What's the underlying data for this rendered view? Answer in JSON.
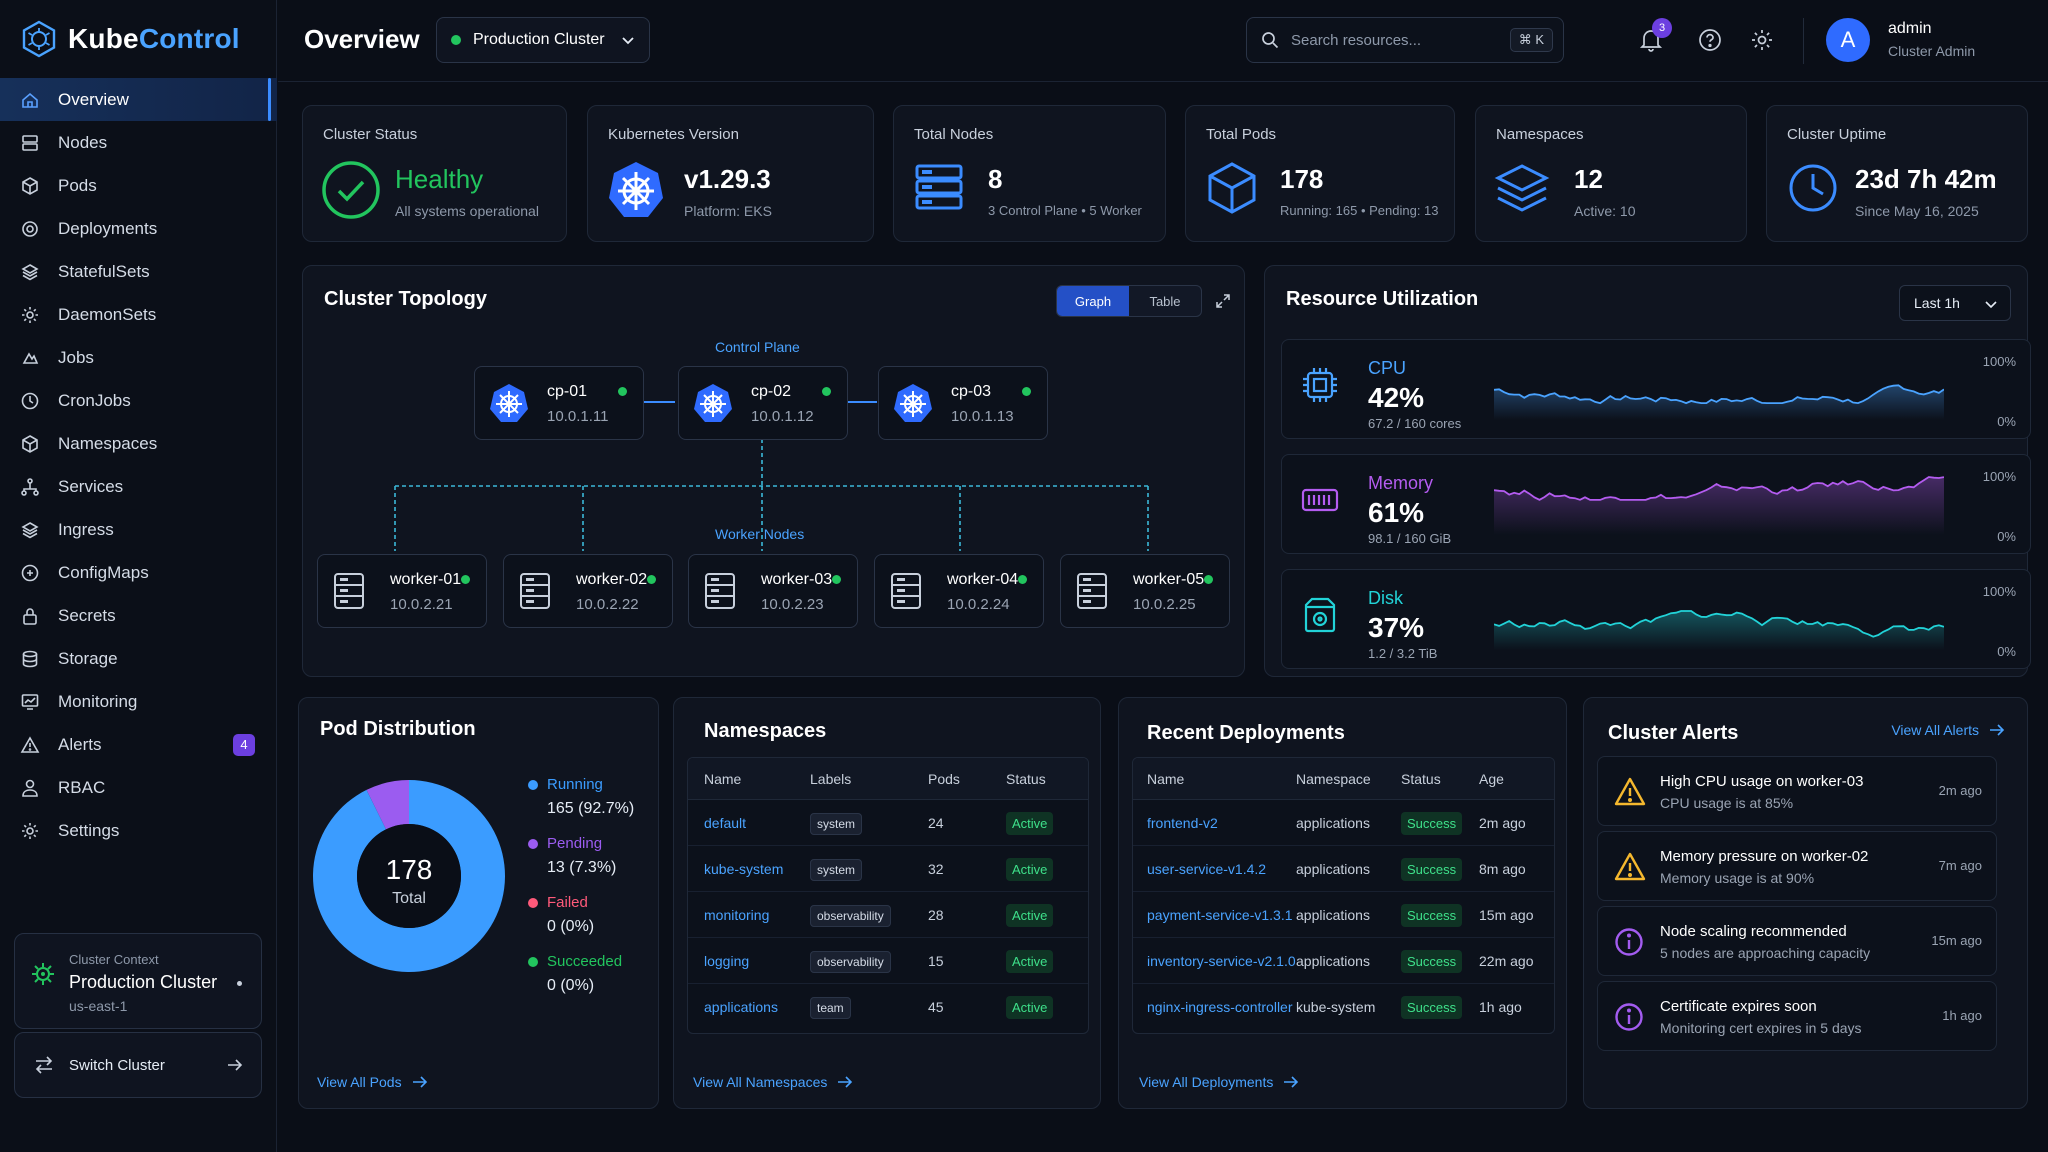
{
  "app": {
    "name_part1": "Kube",
    "name_part2": "Control"
  },
  "sidebar": {
    "items": [
      {
        "label": "Overview",
        "icon": "home-icon"
      },
      {
        "label": "Nodes",
        "icon": "server-icon"
      },
      {
        "label": "Pods",
        "icon": "cube-icon"
      },
      {
        "label": "Deployments",
        "icon": "deploy-icon"
      },
      {
        "label": "StatefulSets",
        "icon": "layers-icon"
      },
      {
        "label": "DaemonSets",
        "icon": "gear-icon"
      },
      {
        "label": "Jobs",
        "icon": "jobs-icon"
      },
      {
        "label": "CronJobs",
        "icon": "clock-icon"
      },
      {
        "label": "Namespaces",
        "icon": "cube-icon"
      },
      {
        "label": "Services",
        "icon": "network-icon"
      },
      {
        "label": "Ingress",
        "icon": "layers-icon"
      },
      {
        "label": "ConfigMaps",
        "icon": "config-icon"
      },
      {
        "label": "Secrets",
        "icon": "lock-icon"
      },
      {
        "label": "Storage",
        "icon": "database-icon"
      },
      {
        "label": "Monitoring",
        "icon": "monitor-icon"
      },
      {
        "label": "Alerts",
        "icon": "warning-icon",
        "badge": "4"
      },
      {
        "label": "RBAC",
        "icon": "user-icon"
      },
      {
        "label": "Settings",
        "icon": "gear-icon"
      }
    ],
    "context": {
      "label": "Cluster Context",
      "name": "Production Cluster",
      "region": "us-east-1"
    },
    "switch_label": "Switch Cluster"
  },
  "header": {
    "title": "Overview",
    "cluster": "Production Cluster",
    "search_placeholder": "Search resources...",
    "shortcut": "⌘ K",
    "notifications": "3",
    "user_name": "admin",
    "user_role": "Cluster Admin",
    "avatar_letter": "A"
  },
  "stats": [
    {
      "title": "Cluster Status",
      "value": "Healthy",
      "sub": "All systems operational"
    },
    {
      "title": "Kubernetes Version",
      "value": "v1.29.3",
      "sub": "Platform: EKS"
    },
    {
      "title": "Total Nodes",
      "value": "8",
      "sub": "3 Control Plane • 5 Worker"
    },
    {
      "title": "Total Pods",
      "value": "178",
      "sub": "Running: 165 • Pending: 13"
    },
    {
      "title": "Namespaces",
      "value": "12",
      "sub": "Active: 10"
    },
    {
      "title": "Cluster Uptime",
      "value": "23d 7h 42m",
      "sub": "Since May 16, 2025"
    }
  ],
  "topology": {
    "title": "Cluster Topology",
    "view_graph": "Graph",
    "view_table": "Table",
    "control_label": "Control Plane",
    "worker_label": "Worker Nodes",
    "control": [
      {
        "name": "cp-01",
        "ip": "10.0.1.11"
      },
      {
        "name": "cp-02",
        "ip": "10.0.1.12"
      },
      {
        "name": "cp-03",
        "ip": "10.0.1.13"
      }
    ],
    "workers": [
      {
        "name": "worker-01",
        "ip": "10.0.2.21"
      },
      {
        "name": "worker-02",
        "ip": "10.0.2.22"
      },
      {
        "name": "worker-03",
        "ip": "10.0.2.23"
      },
      {
        "name": "worker-04",
        "ip": "10.0.2.24"
      },
      {
        "name": "worker-05",
        "ip": "10.0.2.25"
      }
    ]
  },
  "resources": {
    "title": "Resource Utilization",
    "range": "Last 1h",
    "axis_max": "100%",
    "axis_min": "0%",
    "items": [
      {
        "name": "CPU",
        "percent": "42%",
        "sub": "67.2 / 160 cores",
        "color": "#4aa3ff"
      },
      {
        "name": "Memory",
        "percent": "61%",
        "sub": "98.1 / 160 GiB",
        "color": "#b45cf0"
      },
      {
        "name": "Disk",
        "percent": "37%",
        "sub": "1.2 / 3.2 TiB",
        "color": "#22d3d8"
      }
    ]
  },
  "pods": {
    "title": "Pod Distribution",
    "total": "178",
    "total_label": "Total",
    "legend": [
      {
        "label": "Running",
        "value": "165 (92.7%)",
        "color": "#3b9cff",
        "fraction": 0.927
      },
      {
        "label": "Pending",
        "value": "13 (7.3%)",
        "color": "#9b5cf0",
        "fraction": 0.073
      },
      {
        "label": "Failed",
        "value": "0 (0%)",
        "color": "#ff5a7a",
        "fraction": 0
      },
      {
        "label": "Succeeded",
        "value": "0 (0%)",
        "color": "#22c55e",
        "fraction": 0
      }
    ],
    "link": "View All Pods"
  },
  "namespaces": {
    "title": "Namespaces",
    "headers": [
      "Name",
      "Labels",
      "Pods",
      "Status"
    ],
    "rows": [
      {
        "name": "default",
        "label": "system",
        "pods": "24",
        "status": "Active"
      },
      {
        "name": "kube-system",
        "label": "system",
        "pods": "32",
        "status": "Active"
      },
      {
        "name": "monitoring",
        "label": "observability",
        "pods": "28",
        "status": "Active"
      },
      {
        "name": "logging",
        "label": "observability",
        "pods": "15",
        "status": "Active"
      },
      {
        "name": "applications",
        "label": "team",
        "pods": "45",
        "status": "Active"
      }
    ],
    "link": "View All Namespaces"
  },
  "deployments": {
    "title": "Recent Deployments",
    "headers": [
      "Name",
      "Namespace",
      "Status",
      "Age"
    ],
    "rows": [
      {
        "name": "frontend-v2",
        "ns": "applications",
        "status": "Success",
        "age": "2m ago"
      },
      {
        "name": "user-service-v1.4.2",
        "ns": "applications",
        "status": "Success",
        "age": "8m ago"
      },
      {
        "name": "payment-service-v1.3.1",
        "ns": "applications",
        "status": "Success",
        "age": "15m ago"
      },
      {
        "name": "inventory-service-v2.1.0",
        "ns": "applications",
        "status": "Success",
        "age": "22m ago"
      },
      {
        "name": "nginx-ingress-controller",
        "ns": "kube-system",
        "status": "Success",
        "age": "1h ago"
      }
    ],
    "link": "View All Deployments"
  },
  "alerts": {
    "title": "Cluster Alerts",
    "link": "View All Alerts",
    "items": [
      {
        "title": "High CPU usage on worker-03",
        "sub": "CPU usage is at 85%",
        "age": "2m ago",
        "type": "warning"
      },
      {
        "title": "Memory pressure on worker-02",
        "sub": "Memory usage is at 90%",
        "age": "7m ago",
        "type": "warning"
      },
      {
        "title": "Node scaling recommended",
        "sub": "5 nodes are approaching capacity",
        "age": "15m ago",
        "type": "info"
      },
      {
        "title": "Certificate expires soon",
        "sub": "Monitoring cert expires in 5 days",
        "age": "1h ago",
        "type": "info"
      }
    ]
  }
}
